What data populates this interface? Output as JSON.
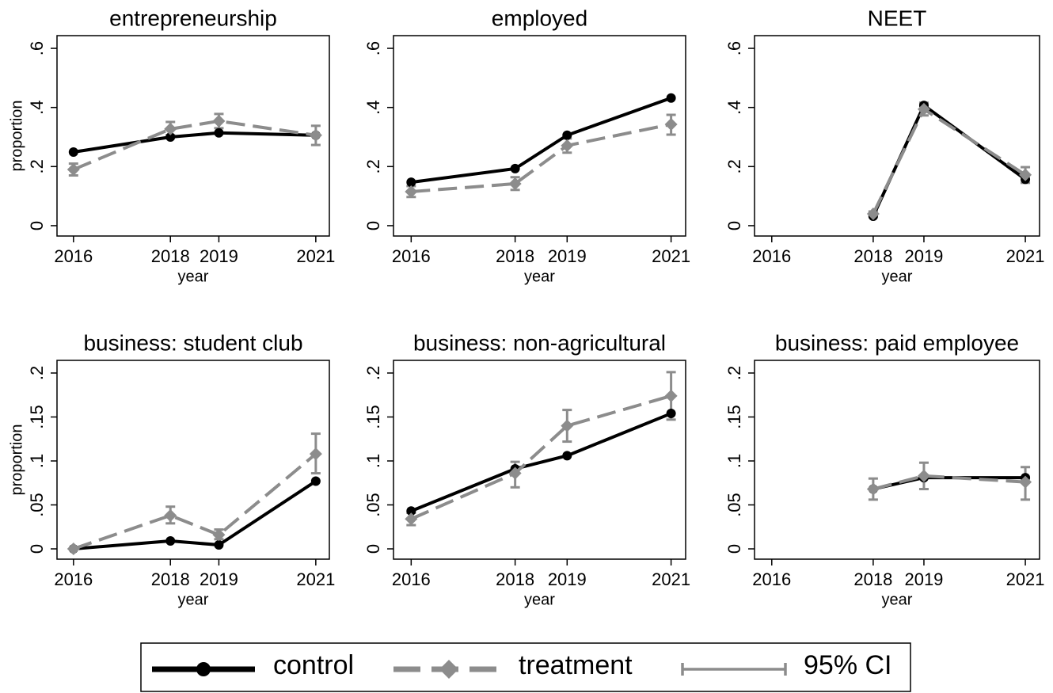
{
  "chart_data": [
    {
      "type": "line",
      "title": "entrepreneurship",
      "ylabel": "proportion",
      "xlabel": "year",
      "x": [
        2016,
        2018,
        2019,
        2021
      ],
      "xlim": [
        2015.66,
        2021.28
      ],
      "xticks": [
        2016,
        2018,
        2019,
        2021
      ],
      "ylim": [
        -0.035,
        0.643
      ],
      "yticks": [
        0,
        {
          "value": 0.2,
          "label": ".2"
        },
        {
          "value": 0.4,
          "label": ".4"
        },
        {
          "value": 0.6,
          "label": ".6"
        }
      ],
      "series": [
        {
          "name": "control",
          "color": "#000000",
          "values": [
            0.249,
            0.3,
            0.314,
            0.306
          ]
        },
        {
          "name": "treatment",
          "color": "#8c8c8c",
          "values": [
            0.19,
            0.327,
            0.354,
            0.306
          ],
          "ci_low": [
            0.17,
            0.306,
            0.33,
            0.273
          ],
          "ci_high": [
            0.21,
            0.351,
            0.378,
            0.338
          ]
        }
      ]
    },
    {
      "type": "line",
      "title": "employed",
      "xlabel": "year",
      "x": [
        2016,
        2018,
        2019,
        2021
      ],
      "xlim": [
        2015.66,
        2021.28
      ],
      "xticks": [
        2016,
        2018,
        2019,
        2021
      ],
      "ylim": [
        -0.035,
        0.643
      ],
      "yticks": [
        0,
        {
          "value": 0.2,
          "label": ".2"
        },
        {
          "value": 0.4,
          "label": ".4"
        },
        {
          "value": 0.6,
          "label": ".6"
        }
      ],
      "series": [
        {
          "name": "control",
          "color": "#000000",
          "values": [
            0.147,
            0.193,
            0.306,
            0.432
          ]
        },
        {
          "name": "treatment",
          "color": "#8c8c8c",
          "values": [
            0.115,
            0.142,
            0.271,
            0.343
          ],
          "ci_low": [
            0.097,
            0.121,
            0.247,
            0.308
          ],
          "ci_high": [
            0.134,
            0.164,
            0.295,
            0.375
          ]
        }
      ]
    },
    {
      "type": "line",
      "title": "NEET",
      "xlabel": "year",
      "x": [
        2016,
        2018,
        2019,
        2021
      ],
      "xlim": [
        2015.66,
        2021.28
      ],
      "xticks": [
        2016,
        2018,
        2019,
        2021
      ],
      "ylim": [
        -0.035,
        0.643
      ],
      "yticks": [
        0,
        {
          "value": 0.2,
          "label": ".2"
        },
        {
          "value": 0.4,
          "label": ".4"
        },
        {
          "value": 0.6,
          "label": ".6"
        }
      ],
      "series": [
        {
          "name": "control",
          "color": "#000000",
          "values": [
            null,
            0.032,
            0.407,
            0.157
          ]
        },
        {
          "name": "treatment",
          "color": "#8c8c8c",
          "values": [
            null,
            0.04,
            0.394,
            0.172
          ],
          "ci_low": [
            null,
            0.03,
            0.373,
            0.145
          ],
          "ci_high": [
            null,
            0.048,
            0.416,
            0.198
          ]
        }
      ]
    },
    {
      "type": "line",
      "title": "business: student club",
      "ylabel": "proportion",
      "xlabel": "year",
      "x": [
        2016,
        2018,
        2019,
        2021
      ],
      "xlim": [
        2015.66,
        2021.28
      ],
      "xticks": [
        2016,
        2018,
        2019,
        2021
      ],
      "ylim": [
        -0.0117,
        0.2144
      ],
      "yticks": [
        0,
        {
          "value": 0.05,
          "label": ".05"
        },
        {
          "value": 0.1,
          "label": ".1"
        },
        {
          "value": 0.15,
          "label": ".15"
        },
        {
          "value": 0.2,
          "label": ".2"
        }
      ],
      "series": [
        {
          "name": "control",
          "color": "#000000",
          "values": [
            0,
            0.009,
            0.0045,
            0.077
          ]
        },
        {
          "name": "treatment",
          "color": "#8c8c8c",
          "values": [
            0,
            0.038,
            0.016,
            0.108
          ],
          "ci_low": [
            null,
            0.029,
            0.011,
            0.086
          ],
          "ci_high": [
            null,
            0.048,
            0.022,
            0.131
          ]
        }
      ]
    },
    {
      "type": "line",
      "title": "business: non-agricultural",
      "xlabel": "year",
      "x": [
        2016,
        2018,
        2019,
        2021
      ],
      "xlim": [
        2015.66,
        2021.28
      ],
      "xticks": [
        2016,
        2018,
        2019,
        2021
      ],
      "ylim": [
        -0.0117,
        0.2144
      ],
      "yticks": [
        0,
        {
          "value": 0.05,
          "label": ".05"
        },
        {
          "value": 0.1,
          "label": ".1"
        },
        {
          "value": 0.15,
          "label": ".15"
        },
        {
          "value": 0.2,
          "label": ".2"
        }
      ],
      "series": [
        {
          "name": "control",
          "color": "#000000",
          "values": [
            0.043,
            0.091,
            0.106,
            0.154
          ]
        },
        {
          "name": "treatment",
          "color": "#8c8c8c",
          "values": [
            0.034,
            0.086,
            0.14,
            0.174
          ],
          "ci_low": [
            0.027,
            0.07,
            0.122,
            0.147
          ],
          "ci_high": [
            0.041,
            0.099,
            0.158,
            0.201
          ]
        }
      ]
    },
    {
      "type": "line",
      "title": "business: paid employee",
      "xlabel": "year",
      "x": [
        2016,
        2018,
        2019,
        2021
      ],
      "xlim": [
        2015.66,
        2021.28
      ],
      "xticks": [
        2016,
        2018,
        2019,
        2021
      ],
      "ylim": [
        -0.0117,
        0.2144
      ],
      "yticks": [
        0,
        {
          "value": 0.05,
          "label": ".05"
        },
        {
          "value": 0.1,
          "label": ".1"
        },
        {
          "value": 0.15,
          "label": ".15"
        },
        {
          "value": 0.2,
          "label": ".2"
        }
      ],
      "series": [
        {
          "name": "control",
          "color": "#000000",
          "values": [
            null,
            0.068,
            0.081,
            0.081
          ]
        },
        {
          "name": "treatment",
          "color": "#8c8c8c",
          "values": [
            null,
            0.068,
            0.083,
            0.076
          ],
          "ci_low": [
            null,
            0.056,
            0.068,
            0.056
          ],
          "ci_high": [
            null,
            0.08,
            0.098,
            0.093
          ]
        }
      ]
    }
  ],
  "ci_label": "95% CI"
}
